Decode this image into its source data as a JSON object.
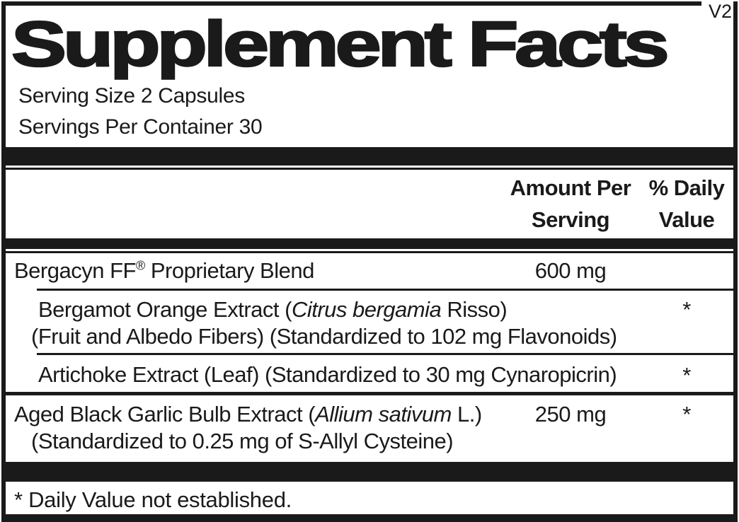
{
  "colors": {
    "ink": "#1a1a1a",
    "background": "#ffffff"
  },
  "version_tag": "V2",
  "title": "Supplement Facts",
  "serving_info": {
    "serving_size": "Serving Size 2 Capsules",
    "servings_per_container": "Servings Per Container 30"
  },
  "column_headers": {
    "amount": {
      "line1": "Amount Per",
      "line2": "Serving"
    },
    "daily_value": {
      "line1": "% Daily",
      "line2": "Value"
    }
  },
  "ingredients": {
    "proprietary_blend": {
      "name": "Bergacyn FF",
      "registered_mark": "®",
      "name_suffix": " Proprietary Blend",
      "amount": "600 mg",
      "daily_value": ""
    },
    "bergamot_orange": {
      "line1_pre": "Bergamot Orange Extract (",
      "line1_italic": "Citrus bergamia",
      "line1_post": " Risso)",
      "line2": "(Fruit and Albedo Fibers) (Standardized to 102 mg Flavonoids)",
      "daily_value": "*"
    },
    "artichoke": {
      "name": "Artichoke Extract (Leaf) (Standardized to 30 mg Cynaropicrin)",
      "daily_value": "*"
    },
    "aged_black_garlic": {
      "line1_pre": "Aged Black Garlic Bulb Extract (",
      "line1_italic": "Allium sativum",
      "line1_post": " L.)",
      "line2": "(Standardized to 0.25 mg of S-Allyl Cysteine)",
      "amount": "250 mg",
      "daily_value": "*"
    }
  },
  "footnote": "* Daily Value not established."
}
